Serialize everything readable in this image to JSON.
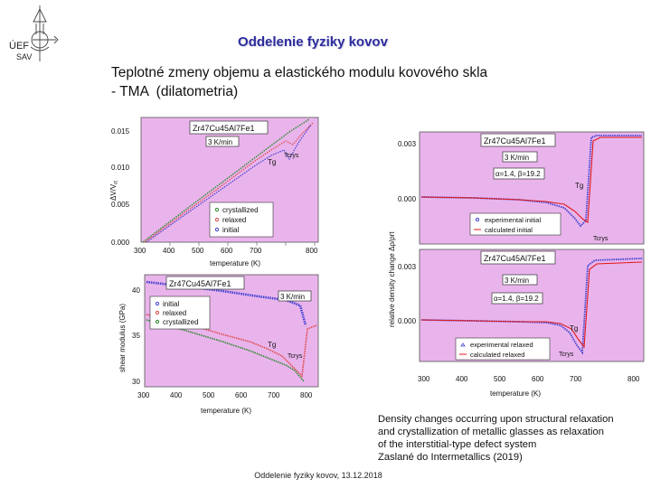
{
  "logo": {
    "text_top": "ÚEF",
    "text_bottom": "SAV",
    "icon": "institute-logo-icon"
  },
  "header": {
    "title": "Oddelenie fyziky kovov"
  },
  "slide": {
    "title_lines": [
      "Teplotné zmeny objemu a elastického modulu kovového skla",
      "- TMA  (dilatometria)"
    ]
  },
  "figures": {
    "volume": {
      "ylabel": "ΔV/V",
      "ylabel_sub": "rt",
      "xlabel": "temperature (K)",
      "composition": "Zr47Cu45Al7Fe1",
      "rate": "3 K/min",
      "tg_label": "Tg",
      "tcrys_label": "Tcrys",
      "xticks": [
        "300",
        "400",
        "500",
        "600",
        "700",
        "800"
      ],
      "yticks": [
        "0.000",
        "0.005",
        "0.010",
        "0.015"
      ],
      "legend": [
        "crystallized",
        "relaxed",
        "initial"
      ]
    },
    "shear": {
      "ylabel": "shear modulus (GPa)",
      "xlabel": "temperature (K)",
      "composition": "Zr47Cu45Al7Fe1",
      "rate": "3 K/min",
      "tg_label": "Tg",
      "tcrys_label": "Tcrys",
      "xticks": [
        "300",
        "400",
        "500",
        "600",
        "700",
        "800"
      ],
      "yticks": [
        "30",
        "35",
        "40"
      ],
      "legend": [
        "initial",
        "relaxed",
        "crystallized"
      ]
    },
    "density": {
      "ylabel": "relative density change  Δρ/ρrt",
      "xlabel": "temperature (K)",
      "xticks": [
        "300",
        "400",
        "500",
        "600",
        "700",
        "800"
      ],
      "top": {
        "yticks": [
          "0.003",
          "0.000"
        ],
        "composition": "Zr47Cu45Al7Fe1",
        "rate": "3 K/min",
        "params": "α=1.4,  β=19.2",
        "legend": [
          "experimental initial",
          "calculated initial"
        ],
        "tg_label": "Tg",
        "tcrys_label": "Tcrys"
      },
      "bottom": {
        "yticks": [
          "0.003",
          "0.000"
        ],
        "composition": "Zr47Cu45Al7Fe1",
        "rate": "3 K/min",
        "params": "α=1.4,  β=19.2",
        "legend": [
          "experimental relaxed",
          "calculated relaxed"
        ],
        "tg_label": "Tg",
        "tcrys_label": "Tcrys"
      }
    }
  },
  "caption": {
    "lines": [
      "Density changes occurring upon structural relaxation",
      "and crystallization of metallic glasses as relaxation",
      "of the interstitial-type defect system",
      "Zaslané do Intermetallics (2019)"
    ]
  },
  "footer": {
    "text": "Oddelenie fyziky kovov, 13.12.2018"
  },
  "colors": {
    "plot_bg": "#e9b4ec",
    "header_text": "#2c2c9c",
    "calc_curve": "#e01818",
    "series_blue": "#4040d0",
    "series_red": "#e04848",
    "series_green": "#2a8a2a"
  }
}
